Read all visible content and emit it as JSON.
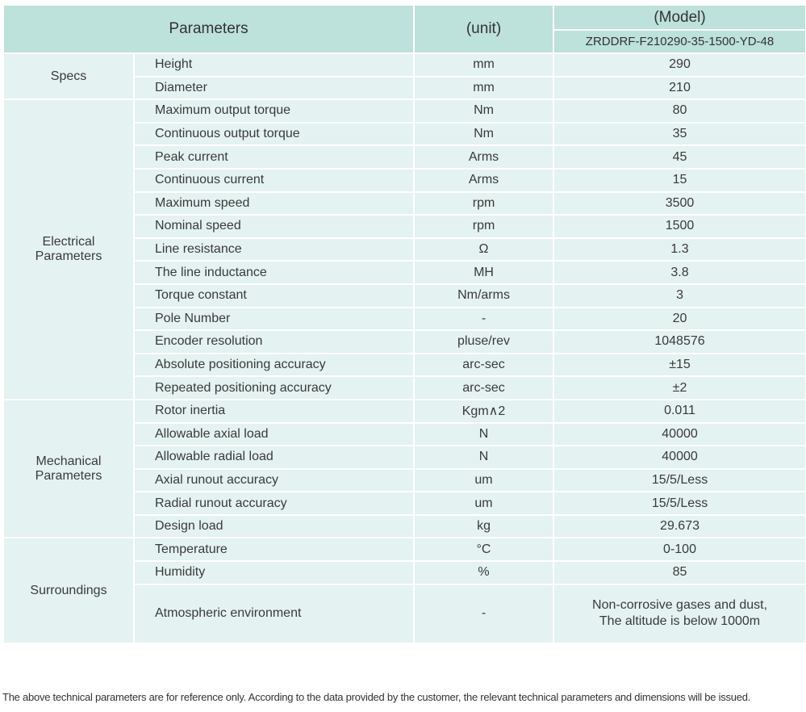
{
  "header": {
    "parameters": "Parameters",
    "unit": "(unit)",
    "model": "(Model)",
    "model_name": "ZRDDRF-F210290-35-1500-YD-48"
  },
  "groups": [
    {
      "name": "Specs",
      "rows": [
        [
          "Height",
          "mm",
          "290"
        ],
        [
          "Diameter",
          "mm",
          "210"
        ]
      ]
    },
    {
      "name": "Electrical Parameters",
      "rows": [
        [
          "Maximum output torque",
          "Nm",
          "80"
        ],
        [
          "Continuous output torque",
          "Nm",
          "35"
        ],
        [
          "Peak current",
          "Arms",
          "45"
        ],
        [
          "Continuous current",
          "Arms",
          "15"
        ],
        [
          "Maximum speed",
          "rpm",
          "3500"
        ],
        [
          "Nominal speed",
          "rpm",
          "1500"
        ],
        [
          "Line resistance",
          "Ω",
          "1.3"
        ],
        [
          "The line inductance",
          "MH",
          "3.8"
        ],
        [
          "Torque constant",
          "Nm/arms",
          "3"
        ],
        [
          "Pole Number",
          "-",
          "20"
        ],
        [
          "Encoder resolution",
          "pluse/rev",
          "1048576"
        ],
        [
          "Absolute positioning accuracy",
          "arc-sec",
          "±15"
        ],
        [
          "Repeated positioning accuracy",
          "arc-sec",
          "±2"
        ]
      ]
    },
    {
      "name": "Mechanical Parameters",
      "rows": [
        [
          "Rotor inertia",
          "Kgm∧2",
          "0.011"
        ],
        [
          "Allowable axial load",
          "N",
          "40000"
        ],
        [
          "Allowable radial load",
          "N",
          "40000"
        ],
        [
          "Axial runout accuracy",
          "um",
          "15/5/Less"
        ],
        [
          "Radial runout accuracy",
          "um",
          "15/5/Less"
        ],
        [
          "Design load",
          "kg",
          "29.673"
        ]
      ]
    },
    {
      "name": "Surroundings",
      "rows": [
        [
          "Temperature",
          "°C",
          "0-100"
        ],
        [
          "Humidity",
          "%",
          "85"
        ],
        [
          "Atmospheric environment",
          "-",
          "Non-corrosive gases and dust,\nThe altitude is below 1000m"
        ]
      ]
    }
  ],
  "footer": "The above technical parameters are for reference only. According to the data provided by the customer, the relevant technical parameters and dimensions will be issued.",
  "colors": {
    "header_bg": "#bde1db",
    "body_bg": "#e4f2f1"
  }
}
